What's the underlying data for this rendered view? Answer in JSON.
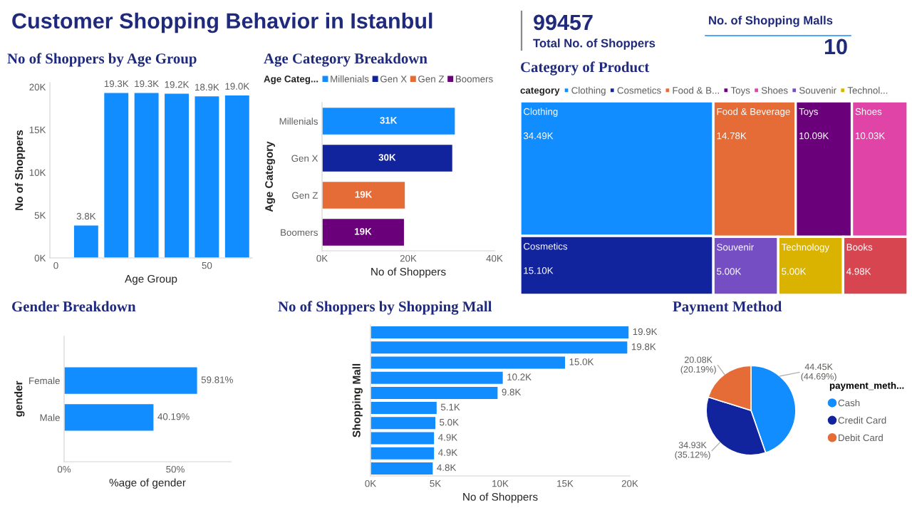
{
  "chart_data": [
    {
      "type": "other",
      "title": "Customer Shopping Behavior in Istanbul",
      "annotations": [
        "99457",
        "Total No. of Shoppers",
        "No. of Shopping Malls",
        "10"
      ]
    },
    {
      "type": "bar",
      "title": "No of Shoppers by Age Group",
      "x": [
        10,
        20,
        30,
        40,
        50,
        60
      ],
      "values": [
        3800,
        19300,
        19300,
        19200,
        18900,
        19000
      ],
      "value_labels": [
        "3.8K",
        "19.3K",
        "19.3K",
        "19.2K",
        "18.9K",
        "19.0K"
      ],
      "color": "#118dff",
      "xlim": [
        -2,
        65
      ],
      "xticks": [
        0,
        50
      ],
      "ylim": [
        0,
        20500
      ],
      "yticks": [
        {
          "value": 0,
          "label": "0K"
        },
        {
          "value": 5000,
          "label": "5K"
        },
        {
          "value": 10000,
          "label": "10K"
        },
        {
          "value": 15000,
          "label": "15K"
        },
        {
          "value": 20000,
          "label": "20K"
        }
      ],
      "xlabel": "Age Group",
      "ylabel": "No of Shoppers"
    },
    {
      "type": "bar",
      "orientation": "horizontal",
      "title": "Age Category Breakdown",
      "categories": [
        "Millenials",
        "Gen X",
        "Gen Z",
        "Boomers"
      ],
      "series": [
        {
          "name": "Millenials",
          "color": "#118dff",
          "values": [
            30800,
            null,
            null,
            null
          ],
          "value_labels": [
            "31K",
            null,
            null,
            null
          ]
        },
        {
          "name": "Gen X",
          "color": "#12239e",
          "values": [
            null,
            30200,
            null,
            null
          ],
          "value_labels": [
            null,
            "30K",
            null,
            null
          ]
        },
        {
          "name": "Gen Z",
          "color": "#e66c37",
          "values": [
            null,
            null,
            19200,
            null
          ],
          "value_labels": [
            null,
            null,
            "19K",
            null
          ]
        },
        {
          "name": "Boomers",
          "color": "#6b007b",
          "values": [
            null,
            null,
            null,
            19000
          ],
          "value_labels": [
            null,
            null,
            null,
            "19K"
          ]
        }
      ],
      "xlim": [
        0,
        40000
      ],
      "xticks": [
        {
          "value": 0,
          "label": "0K"
        },
        {
          "value": 20000,
          "label": "20K"
        },
        {
          "value": 40000,
          "label": "40K"
        }
      ],
      "xlabel": "No of Shoppers",
      "ylabel": "Age Category",
      "legend": "top",
      "legend_title": "Age Categ..."
    },
    {
      "type": "other",
      "title": "Category of Product",
      "legend": "top",
      "legend_title": "category",
      "categories": [
        "Clothing",
        "Cosmetics",
        "Food & Beverage",
        "Toys",
        "Shoes",
        "Souvenir",
        "Technology",
        "Books"
      ],
      "series": [
        {
          "name": "Clothing",
          "color": "#118dff",
          "values": [
            34490,
            null,
            null,
            null,
            null,
            null,
            null,
            null
          ],
          "value_labels": [
            "34.49K",
            null,
            null,
            null,
            null,
            null,
            null,
            null
          ]
        },
        {
          "name": "Cosmetics",
          "color": "#12239e",
          "values": [
            null,
            15100,
            null,
            null,
            null,
            null,
            null,
            null
          ],
          "value_labels": [
            null,
            "15.10K",
            null,
            null,
            null,
            null,
            null,
            null
          ]
        },
        {
          "name": "Food & B...",
          "color": "#e66c37",
          "values": [
            null,
            null,
            14780,
            null,
            null,
            null,
            null,
            null
          ],
          "value_labels": [
            null,
            null,
            "14.78K",
            null,
            null,
            null,
            null,
            null
          ]
        },
        {
          "name": "Toys",
          "color": "#6b007b",
          "values": [
            null,
            null,
            null,
            10090,
            null,
            null,
            null,
            null
          ],
          "value_labels": [
            null,
            null,
            null,
            "10.09K",
            null,
            null,
            null,
            null
          ]
        },
        {
          "name": "Shoes",
          "color": "#e044a7",
          "values": [
            null,
            null,
            null,
            null,
            10030,
            null,
            null,
            null
          ],
          "value_labels": [
            null,
            null,
            null,
            null,
            "10.03K",
            null,
            null,
            null
          ]
        },
        {
          "name": "Souvenir",
          "color": "#744ec2",
          "values": [
            null,
            null,
            null,
            null,
            null,
            5000,
            null,
            null
          ],
          "value_labels": [
            null,
            null,
            null,
            null,
            null,
            "5.00K",
            null,
            null
          ]
        },
        {
          "name": "Technol...",
          "color": "#d9b300",
          "values": [
            null,
            null,
            null,
            null,
            null,
            null,
            5000,
            null
          ],
          "value_labels": [
            null,
            null,
            null,
            null,
            null,
            null,
            "5.00K",
            null
          ]
        },
        {
          "color": "#d64550",
          "values": [
            null,
            null,
            null,
            null,
            null,
            null,
            null,
            4980
          ],
          "value_labels": [
            null,
            null,
            null,
            null,
            null,
            null,
            null,
            "4.98K"
          ]
        }
      ]
    },
    {
      "type": "bar",
      "orientation": "horizontal",
      "title": "Gender Breakdown",
      "categories": [
        "Female",
        "Male"
      ],
      "values": [
        59.81,
        40.19
      ],
      "value_labels": [
        "59.81%",
        "40.19%"
      ],
      "color": "#118dff",
      "xlim": [
        0,
        75
      ],
      "xticks": [
        {
          "value": 0,
          "label": "0%"
        },
        {
          "value": 50,
          "label": "50%"
        }
      ],
      "xlabel": "%age of gender",
      "ylabel": "gender"
    },
    {
      "type": "bar",
      "orientation": "horizontal",
      "title": "No of Shoppers by Shopping Mall",
      "categories": [
        null,
        null,
        null,
        null,
        null,
        null,
        null,
        null,
        null,
        null
      ],
      "values": [
        19900,
        19800,
        15000,
        10200,
        9800,
        5100,
        5000,
        4900,
        4900,
        4800
      ],
      "value_labels": [
        "19.9K",
        "19.8K",
        "15.0K",
        "10.2K",
        "9.8K",
        "5.1K",
        "5.0K",
        "4.9K",
        "4.9K",
        "4.8K"
      ],
      "color": "#118dff",
      "xlim": [
        0,
        20000
      ],
      "xticks": [
        {
          "value": 0,
          "label": "0K"
        },
        {
          "value": 5000,
          "label": "5K"
        },
        {
          "value": 10000,
          "label": "10K"
        },
        {
          "value": 15000,
          "label": "15K"
        },
        {
          "value": 20000,
          "label": "20K"
        }
      ],
      "xlabel": "No of Shoppers",
      "ylabel": "Shopping Mall"
    },
    {
      "type": "pie",
      "title": "Payment Method",
      "categories": [
        "Cash",
        "Credit Card",
        "Debit Card"
      ],
      "values": [
        44450,
        34930,
        20080
      ],
      "value_labels": [
        "44.45K\n(44.69%)",
        "34.93K\n(35.12%)",
        "20.08K\n(20.19%)"
      ],
      "colors": [
        "#118dff",
        "#12239e",
        "#e66c37"
      ],
      "legend": "right",
      "legend_title": "payment_meth..."
    }
  ]
}
